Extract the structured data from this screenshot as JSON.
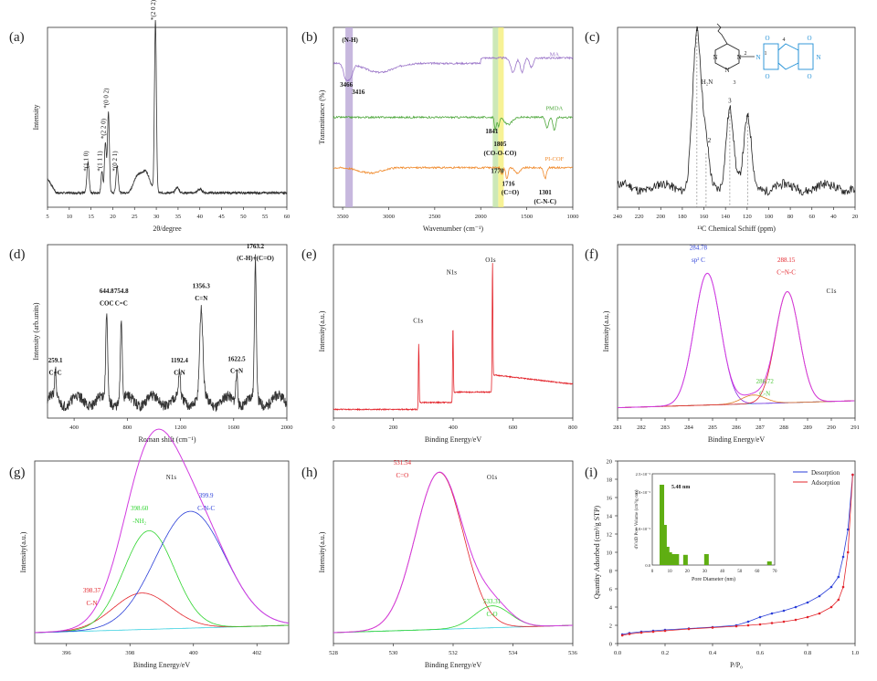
{
  "chart_data": [
    {
      "id": "a",
      "type": "line",
      "panel_label": "(a)",
      "xlabel": "2θ/degree",
      "ylabel": "Intensity",
      "xlim": [
        5,
        60
      ],
      "xticks": [
        5,
        10,
        15,
        20,
        25,
        30,
        35,
        40,
        45,
        50,
        55,
        60
      ],
      "baseline": 0.08,
      "peaks": [
        [
          14.3,
          0.17,
          0.25
        ],
        [
          17.5,
          0.12,
          0.2
        ],
        [
          18.3,
          0.28,
          0.22
        ],
        [
          19.0,
          0.45,
          0.22
        ],
        [
          21.0,
          0.15,
          0.25
        ],
        [
          25.5,
          0.08,
          0.8
        ],
        [
          27.5,
          0.12,
          1.0
        ],
        [
          29.8,
          0.95,
          0.22
        ],
        [
          34.8,
          0.03,
          0.4
        ],
        [
          40,
          0.02,
          0.5
        ]
      ],
      "annotations": [
        {
          "text": "*(1 1 0)",
          "x": 14.3,
          "y": 0.2
        },
        {
          "text": "*(1 1 1)",
          "x": 17.5,
          "y": 0.2
        },
        {
          "text": "*(2 2 0)",
          "x": 18.3,
          "y": 0.38
        },
        {
          "text": "*(0 0 2)",
          "x": 19.0,
          "y": 0.55
        },
        {
          "text": "*(0 2 1)",
          "x": 21.0,
          "y": 0.2
        },
        {
          "text": "*(2 0 2)",
          "x": 29.8,
          "y": 1.04
        }
      ]
    },
    {
      "id": "b",
      "type": "line",
      "panel_label": "(b)",
      "xlabel": "Wavenumber (cm⁻¹)",
      "ylabel": "Transmittance (%)",
      "xlim": [
        3600,
        1000
      ],
      "xticks": [
        3500,
        3000,
        2500,
        2000,
        1500,
        1000
      ],
      "bands": [
        {
          "from": 3470,
          "to": 3390,
          "color": "#b9a6d6"
        },
        {
          "from": 1870,
          "to": 1810,
          "color": "#bfe2a5"
        },
        {
          "from": 1810,
          "to": 1750,
          "color": "#f5ef7a"
        }
      ],
      "series": [
        {
          "name": "MA",
          "color": "#9a74c8",
          "offset": 0.8
        },
        {
          "name": "PMDA",
          "color": "#4fa83d",
          "offset": 0.5
        },
        {
          "name": "PI-COF",
          "color": "#f08a2c",
          "offset": 0.22
        }
      ],
      "annotations": [
        {
          "text": "(N-H)",
          "x": 3420,
          "y": 0.92
        },
        {
          "text": "3466",
          "x": 3460,
          "y": 0.67
        },
        {
          "text": "3416",
          "x": 3330,
          "y": 0.63
        },
        {
          "text": "1841",
          "x": 1880,
          "y": 0.41
        },
        {
          "text": "1805",
          "x": 1790,
          "y": 0.34
        },
        {
          "text": "(CO-O-CO)",
          "x": 1790,
          "y": 0.29
        },
        {
          "text": "1770",
          "x": 1820,
          "y": 0.19
        },
        {
          "text": "1716",
          "x": 1700,
          "y": 0.12
        },
        {
          "text": "(C=O)",
          "x": 1680,
          "y": 0.07
        },
        {
          "text": "1301",
          "x": 1300,
          "y": 0.07
        },
        {
          "text": "(C-N-C)",
          "x": 1300,
          "y": 0.02
        }
      ]
    },
    {
      "id": "c",
      "type": "line",
      "panel_label": "(c)",
      "xlabel": "¹³C Chemical Schiff (ppm)",
      "xlim": [
        240,
        20
      ],
      "xticks": [
        240,
        220,
        200,
        180,
        160,
        140,
        120,
        100,
        80,
        60,
        40,
        20
      ],
      "peaks": [
        [
          166.5,
          0.86,
          4
        ],
        [
          158,
          0.2,
          3
        ],
        [
          136,
          0.45,
          3.5
        ],
        [
          119.5,
          0.37,
          3.5
        ]
      ],
      "annotations": [
        {
          "text": "1",
          "x": 166.5,
          "y": 0.98
        },
        {
          "text": "2",
          "x": 155,
          "y": 0.36
        },
        {
          "text": "3",
          "x": 136,
          "y": 0.58
        },
        {
          "text": "4",
          "x": 119.5,
          "y": 0.5
        }
      ],
      "structure_labels": [
        "N",
        "N",
        "N",
        "N",
        "H₂N",
        "1",
        "2",
        "3",
        "4",
        "O",
        "O",
        "O",
        "O",
        "N"
      ]
    },
    {
      "id": "d",
      "type": "line",
      "panel_label": "(d)",
      "xlabel": "Roman shift (cm⁻¹)",
      "ylabel": "Intensity (arb.units)",
      "xlim": [
        200,
        2000
      ],
      "xticks": [
        400,
        800,
        1200,
        1600,
        2000
      ],
      "peaks": [
        [
          259.1,
          0.17,
          6
        ],
        [
          644.8,
          0.5,
          7
        ],
        [
          754.8,
          0.47,
          7
        ],
        [
          1192.4,
          0.15,
          7
        ],
        [
          1356.3,
          0.5,
          12
        ],
        [
          1622.5,
          0.18,
          7
        ],
        [
          1763.2,
          0.8,
          7
        ]
      ],
      "annotations": [
        {
          "text": "259.1",
          "x": 259.1,
          "y": 0.32
        },
        {
          "text": "C=C",
          "x": 259.1,
          "y": 0.25
        },
        {
          "text": "644.8",
          "x": 644.8,
          "y": 0.72
        },
        {
          "text": "COC",
          "x": 644.8,
          "y": 0.65
        },
        {
          "text": "754.8",
          "x": 754.8,
          "y": 0.72
        },
        {
          "text": "C=C",
          "x": 754.8,
          "y": 0.65
        },
        {
          "text": "1192.4",
          "x": 1192.4,
          "y": 0.32
        },
        {
          "text": "C-N",
          "x": 1192.4,
          "y": 0.25
        },
        {
          "text": "1356.3",
          "x": 1356.3,
          "y": 0.75
        },
        {
          "text": "C=N",
          "x": 1356.3,
          "y": 0.68
        },
        {
          "text": "1622.5",
          "x": 1622.5,
          "y": 0.33
        },
        {
          "text": "C=N",
          "x": 1622.5,
          "y": 0.26
        },
        {
          "text": "1763.2",
          "x": 1763.2,
          "y": 0.98
        },
        {
          "text": "(C-H)+(C=O)",
          "x": 1763.2,
          "y": 0.91
        }
      ]
    },
    {
      "id": "e",
      "type": "line",
      "panel_label": "(e)",
      "xlabel": "Binding Energy/eV",
      "ylabel": "Intensity(a.u.)",
      "xlim": [
        0,
        800
      ],
      "xticks": [
        0,
        200,
        400,
        600,
        800
      ],
      "annotations": [
        {
          "text": "C1s",
          "x": 283,
          "y": 0.55
        },
        {
          "text": "N1s",
          "x": 395,
          "y": 0.83
        },
        {
          "text": "O1s",
          "x": 525,
          "y": 0.9
        }
      ]
    },
    {
      "id": "f",
      "type": "line",
      "panel_label": "(f)",
      "xlabel": "Binding Energy/eV",
      "ylabel": "Intensity(a.u.)",
      "xlim": [
        281,
        291
      ],
      "xticks": [
        281,
        282,
        283,
        284,
        285,
        286,
        287,
        288,
        289,
        290,
        291
      ],
      "components": [
        {
          "center": 284.78,
          "height": 0.76,
          "width": 0.55,
          "color": "#8a2be2"
        },
        {
          "center": 286.72,
          "height": 0.05,
          "width": 0.5,
          "color": "#e07a1f"
        },
        {
          "center": 288.15,
          "height": 0.64,
          "width": 0.5,
          "color": "#e3242b"
        }
      ],
      "annotations": [
        {
          "text": "284.78",
          "x": 284.4,
          "y": 0.97,
          "color": "#2a3ed8"
        },
        {
          "text": "sp² C",
          "x": 284.4,
          "y": 0.9,
          "color": "#2a3ed8"
        },
        {
          "text": "288.15",
          "x": 288.1,
          "y": 0.9,
          "color": "#e3242b"
        },
        {
          "text": "C=N-C",
          "x": 288.1,
          "y": 0.83,
          "color": "#e3242b"
        },
        {
          "text": "C1s",
          "x": 290,
          "y": 0.72,
          "color": "#222"
        },
        {
          "text": "286.72",
          "x": 287.2,
          "y": 0.2,
          "color": "#4fc73a"
        },
        {
          "text": "C-N",
          "x": 287.2,
          "y": 0.13,
          "color": "#4fc73a"
        }
      ]
    },
    {
      "id": "g",
      "type": "line",
      "panel_label": "(g)",
      "xlabel": "Binding Energy/eV",
      "ylabel": "Intensity(a.u.)",
      "xlim": [
        395,
        403
      ],
      "xticks": [
        396,
        398,
        400,
        402
      ],
      "components": [
        {
          "center": 398.37,
          "height": 0.2,
          "width": 0.9,
          "color": "#e3242b"
        },
        {
          "center": 398.6,
          "height": 0.54,
          "width": 0.8,
          "color": "#2ed42e"
        },
        {
          "center": 399.9,
          "height": 0.64,
          "width": 1.1,
          "color": "#2a3ed8"
        }
      ],
      "annotations": [
        {
          "text": "N1s",
          "x": 399.3,
          "y": 0.9,
          "color": "#222"
        },
        {
          "text": "399.9",
          "x": 400.4,
          "y": 0.8,
          "color": "#2a3ed8"
        },
        {
          "text": "C-N-C",
          "x": 400.4,
          "y": 0.73,
          "color": "#2a3ed8"
        },
        {
          "text": "398.60",
          "x": 398.3,
          "y": 0.73,
          "color": "#2ed42e"
        },
        {
          "text": "-NH₂",
          "x": 398.3,
          "y": 0.66,
          "color": "#2ed42e"
        },
        {
          "text": "398.37",
          "x": 396.8,
          "y": 0.28,
          "color": "#e3242b"
        },
        {
          "text": "C-N",
          "x": 396.8,
          "y": 0.21,
          "color": "#e3242b"
        }
      ]
    },
    {
      "id": "h",
      "type": "line",
      "panel_label": "(h)",
      "xlabel": "Binding Energy/eV",
      "ylabel": "Intensity(a.u.)",
      "xlim": [
        528,
        536
      ],
      "xticks": [
        528,
        530,
        532,
        534,
        536
      ],
      "components": [
        {
          "center": 531.54,
          "height": 0.86,
          "width": 0.8,
          "color": "#e3242b"
        },
        {
          "center": 533.31,
          "height": 0.12,
          "width": 0.6,
          "color": "#2ed42e"
        }
      ],
      "annotations": [
        {
          "text": "531.54",
          "x": 530.3,
          "y": 0.98,
          "color": "#e3242b"
        },
        {
          "text": "C=O",
          "x": 530.3,
          "y": 0.91,
          "color": "#e3242b"
        },
        {
          "text": "O1s",
          "x": 533.3,
          "y": 0.9,
          "color": "#222"
        },
        {
          "text": "533.31",
          "x": 533.3,
          "y": 0.22,
          "color": "#2ed42e"
        },
        {
          "text": "C-O",
          "x": 533.3,
          "y": 0.15,
          "color": "#2ed42e"
        }
      ]
    },
    {
      "id": "i",
      "type": "line",
      "panel_label": "(i)",
      "xlabel": "P/P₀",
      "ylabel": "Quantity Adsorbed (cm³/g STP)",
      "xlim": [
        0,
        1
      ],
      "ylim": [
        0,
        20
      ],
      "xticks": [
        0.0,
        0.2,
        0.4,
        0.6,
        0.8,
        1.0
      ],
      "yticks": [
        0,
        2,
        4,
        6,
        8,
        10,
        12,
        14,
        16,
        18,
        20
      ],
      "legend": "top-right",
      "series": [
        {
          "name": "Desorption",
          "color": "#2a3ed8",
          "x": [
            0.02,
            0.05,
            0.1,
            0.15,
            0.2,
            0.3,
            0.4,
            0.5,
            0.55,
            0.6,
            0.65,
            0.7,
            0.75,
            0.8,
            0.85,
            0.9,
            0.93,
            0.95,
            0.97,
            0.99
          ],
          "y": [
            1.0,
            1.15,
            1.3,
            1.4,
            1.5,
            1.65,
            1.8,
            2.0,
            2.4,
            2.9,
            3.3,
            3.6,
            4.0,
            4.5,
            5.2,
            6.2,
            7.3,
            9.5,
            12.5,
            18.5
          ]
        },
        {
          "name": "Adsorption",
          "color": "#e3242b",
          "x": [
            0.02,
            0.05,
            0.1,
            0.15,
            0.2,
            0.3,
            0.4,
            0.5,
            0.55,
            0.6,
            0.65,
            0.7,
            0.75,
            0.8,
            0.85,
            0.9,
            0.93,
            0.95,
            0.97,
            0.99
          ],
          "y": [
            0.9,
            1.05,
            1.2,
            1.3,
            1.4,
            1.6,
            1.75,
            1.9,
            2.0,
            2.1,
            2.25,
            2.4,
            2.6,
            2.9,
            3.3,
            4.0,
            4.8,
            6.2,
            10.0,
            18.5
          ]
        }
      ],
      "inset": {
        "xlabel": "Pore Diameter (nm)",
        "ylabel": "dV/dD Pore Volume (cm³/g·nm)",
        "xticks": [
          0,
          10,
          20,
          30,
          40,
          50,
          60,
          70
        ],
        "yticks_labels": [
          "0.0",
          "1.0×10⁻³",
          "2.0×10⁻³",
          "2.5×10⁻³"
        ],
        "peak_label": "5.48 nm",
        "bars": [
          [
            5.5,
            0.0022
          ],
          [
            7,
            0.0011
          ],
          [
            8.5,
            0.0005
          ],
          [
            10,
            0.00035
          ],
          [
            12,
            0.0003
          ],
          [
            14,
            0.0003
          ],
          [
            19,
            0.00028
          ],
          [
            31,
            0.0003
          ],
          [
            67,
            0.0001
          ]
        ]
      }
    }
  ]
}
